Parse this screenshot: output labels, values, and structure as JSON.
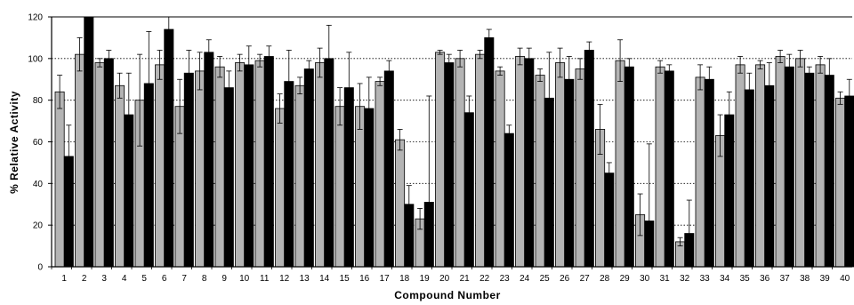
{
  "chart_data": {
    "type": "bar",
    "xlabel": "Compound Number",
    "ylabel": "% Relative Activity",
    "ylim": [
      0,
      120
    ],
    "y_ticks": [
      "0",
      "20",
      "40",
      "60",
      "80",
      "100",
      "120"
    ],
    "grid": "dotted horizontal gridlines",
    "legend": "none",
    "categories": [
      "1",
      "2",
      "3",
      "4",
      "5",
      "6",
      "7",
      "8",
      "9",
      "10",
      "11",
      "12",
      "13",
      "14",
      "15",
      "16",
      "17",
      "18",
      "19",
      "20",
      "21",
      "22",
      "23",
      "24",
      "25",
      "26",
      "27",
      "28",
      "29",
      "30",
      "31",
      "32",
      "33",
      "34",
      "35",
      "36",
      "37",
      "38",
      "39",
      "40"
    ],
    "series": [
      {
        "color": "#b4b4b4",
        "values": [
          84,
          102,
          98,
          87,
          80,
          97,
          77,
          94,
          96,
          98,
          99,
          76,
          87,
          98,
          77,
          77,
          89,
          61,
          23,
          103,
          100,
          102,
          94,
          101,
          92,
          98,
          95,
          66,
          99,
          25,
          96,
          12,
          91,
          63,
          97,
          97,
          101,
          100,
          97,
          81
        ],
        "errors": [
          8,
          8,
          2,
          6,
          22,
          7,
          13,
          9,
          5,
          4,
          3,
          7,
          4,
          7,
          9,
          11,
          2,
          5,
          5,
          1,
          4,
          2,
          2,
          4,
          3,
          7,
          5,
          12,
          10,
          10,
          3,
          2,
          6,
          10,
          4,
          2,
          3,
          4,
          4,
          3
        ]
      },
      {
        "color": "#000000",
        "values": [
          53,
          120,
          100,
          73,
          88,
          114,
          93,
          103,
          86,
          97,
          101,
          89,
          95,
          100,
          86,
          76,
          94,
          30,
          31,
          98,
          74,
          110,
          64,
          100,
          81,
          90,
          104,
          45,
          96,
          22,
          94,
          16,
          90,
          73,
          85,
          87,
          96,
          93,
          92,
          82
        ],
        "errors": [
          15,
          10,
          4,
          20,
          25,
          10,
          11,
          6,
          8,
          9,
          5,
          15,
          4,
          16,
          17,
          15,
          5,
          9,
          51,
          4,
          8,
          4,
          4,
          5,
          22,
          11,
          4,
          5,
          4,
          37,
          3,
          16,
          6,
          11,
          8,
          11,
          6,
          3,
          8,
          8
        ]
      }
    ]
  }
}
